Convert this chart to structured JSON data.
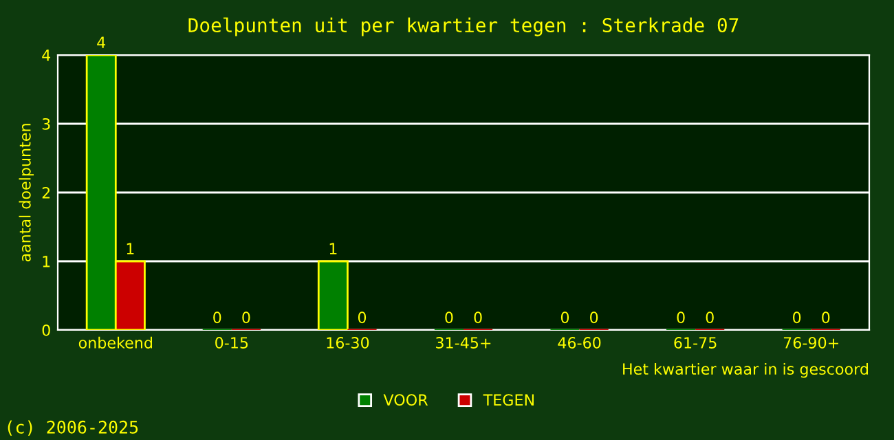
{
  "chart_data": {
    "type": "bar",
    "title": "Doelpunten uit per kwartier tegen : Sterkrade 07",
    "categories": [
      "onbekend",
      "0-15",
      "16-30",
      "31-45+",
      "46-60",
      "61-75",
      "76-90+"
    ],
    "series": [
      {
        "name": "VOOR",
        "color": "#008000",
        "values": [
          4,
          0,
          1,
          0,
          0,
          0,
          0
        ]
      },
      {
        "name": "TEGEN",
        "color": "#cc0000",
        "values": [
          1,
          0,
          0,
          0,
          0,
          0,
          0
        ]
      }
    ],
    "ylabel": "aantal doelpunten",
    "xlabel": "Het kwartier waar in is gescoord",
    "ylim": [
      0,
      4
    ],
    "yticks": [
      0,
      1,
      2,
      3,
      4
    ],
    "grid": "y",
    "data_labels": true,
    "legend": "bottom",
    "annotations": [
      "(c) 2006-2025"
    ]
  }
}
